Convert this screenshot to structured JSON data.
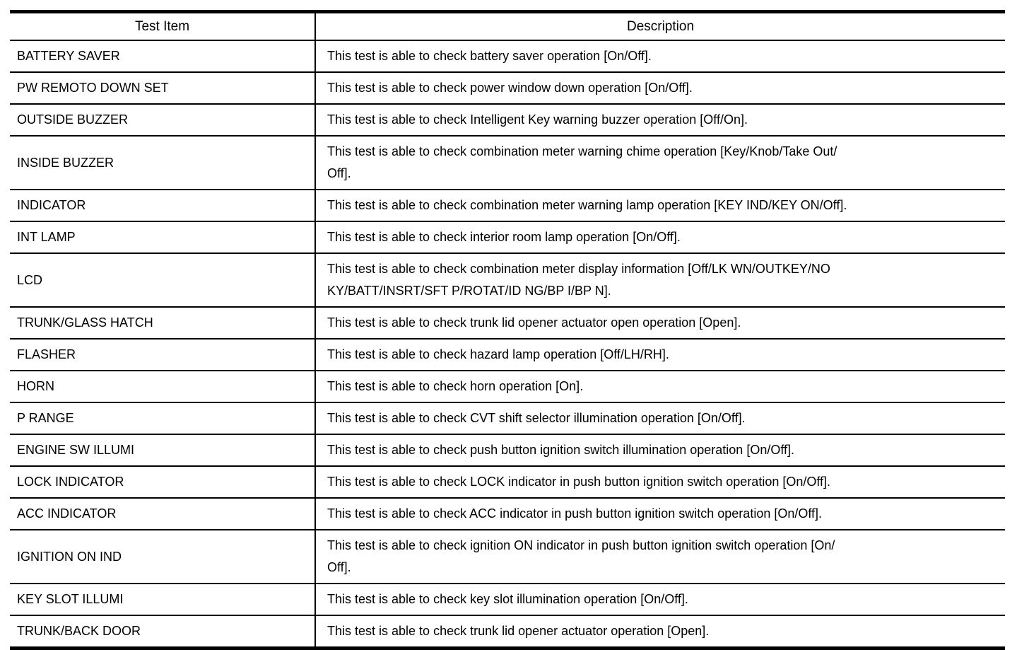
{
  "table": {
    "columns": [
      {
        "label": "Test Item"
      },
      {
        "label": "Description"
      }
    ],
    "rows": [
      {
        "item": "BATTERY SAVER",
        "description": "This test is able to check battery saver operation [On/Off]."
      },
      {
        "item": "PW REMOTO DOWN SET",
        "description": "This test is able to check power window down operation [On/Off]."
      },
      {
        "item": "OUTSIDE BUZZER",
        "description": "This test is able to check Intelligent Key warning buzzer operation [Off/On]."
      },
      {
        "item": "INSIDE BUZZER",
        "description": "This test is able to check combination meter warning chime operation [Key/Knob/Take Out/\nOff]."
      },
      {
        "item": "INDICATOR",
        "description": "This test is able to check combination meter warning lamp operation [KEY IND/KEY ON/Off]."
      },
      {
        "item": "INT LAMP",
        "description": "This test is able to check interior room lamp operation [On/Off]."
      },
      {
        "item": "LCD",
        "description": "This test is able to check combination meter display information [Off/LK WN/OUTKEY/NO\nKY/BATT/INSRT/SFT P/ROTAT/ID NG/BP I/BP N]."
      },
      {
        "item": "TRUNK/GLASS HATCH",
        "description": "This test is able to check trunk lid opener actuator open operation [Open]."
      },
      {
        "item": "FLASHER",
        "description": "This test is able to check hazard lamp operation [Off/LH/RH]."
      },
      {
        "item": "HORN",
        "description": "This test is able to check horn operation [On]."
      },
      {
        "item": "P RANGE",
        "description": "This test is able to check CVT shift selector illumination operation [On/Off]."
      },
      {
        "item": "ENGINE SW ILLUMI",
        "description": "This test is able to check push button ignition switch illumination operation [On/Off]."
      },
      {
        "item": "LOCK INDICATOR",
        "description": "This test is able to check LOCK indicator in push button ignition switch operation [On/Off]."
      },
      {
        "item": "ACC INDICATOR",
        "description": "This test is able to check ACC indicator in push button ignition switch operation [On/Off]."
      },
      {
        "item": "IGNITION ON IND",
        "description": "This test is able to check ignition ON indicator in push button ignition switch operation [On/\nOff]."
      },
      {
        "item": "KEY SLOT ILLUMI",
        "description": "This test is able to check key slot illumination operation [On/Off]."
      },
      {
        "item": "TRUNK/BACK DOOR",
        "description": "This test is able to check trunk lid opener actuator operation [Open]."
      }
    ],
    "colors": {
      "border": "#000000",
      "text": "#000000",
      "background": "#ffffff"
    }
  }
}
